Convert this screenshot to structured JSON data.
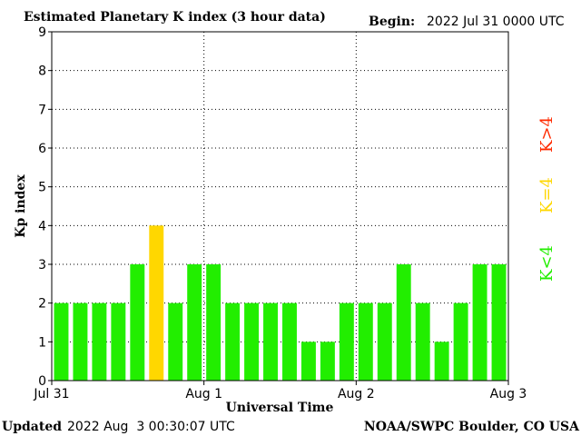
{
  "header": {
    "title": "Estimated Planetary K index (3 hour data)",
    "begin_label": "Begin:",
    "begin_value": "2022 Jul 31 0000 UTC"
  },
  "footer": {
    "updated_label": "Updated",
    "updated_value": "2022 Aug  3 00:30:07 UTC",
    "credit": "NOAA/SWPC Boulder, CO USA"
  },
  "legend": [
    {
      "label": "K>4",
      "color": "#ff2a00"
    },
    {
      "label": "K=4",
      "color": "#ffd700"
    },
    {
      "label": "K<4",
      "color": "#22ee00"
    }
  ],
  "chart_data": {
    "type": "bar",
    "title": "Estimated Planetary K index (3 hour data)",
    "xlabel": "Universal Time",
    "ylabel": "Kp index",
    "ylim": [
      0,
      9
    ],
    "yticks": [
      0,
      1,
      2,
      3,
      4,
      5,
      6,
      7,
      8,
      9
    ],
    "xticks": [
      "Jul 31",
      "Aug 1",
      "Aug 2",
      "Aug 3"
    ],
    "grid": true,
    "interval_hours": 3,
    "values": [
      2,
      2,
      2,
      2,
      3,
      4,
      2,
      3,
      3,
      2,
      2,
      2,
      2,
      1,
      1,
      2,
      2,
      2,
      3,
      2,
      1,
      2,
      3,
      3
    ],
    "colors": {
      "below_4": "#22ee00",
      "equal_4": "#ffd700",
      "above_4": "#ff2a00"
    }
  }
}
